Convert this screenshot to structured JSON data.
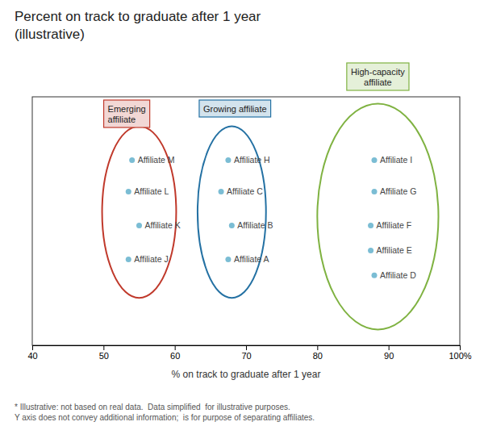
{
  "chart_data": {
    "type": "scatter",
    "title": "Percent on track to graduate after 1 year\n(illustrative)",
    "xlabel": "% on track to graduate after 1 year",
    "footnote": "* Illustrative: not based on real data.  Data simplified  for illustrative purposes.\nY axis does not convey additional information;  is for purpose of separating affiliates.",
    "xlim": [
      40,
      100
    ],
    "xticks": [
      40,
      50,
      60,
      70,
      80,
      90,
      {
        "value": 100,
        "label": "100%"
      }
    ],
    "ylim": [
      0,
      11
    ],
    "tick_labels": "x",
    "grid": false,
    "color": "#7BBDD4",
    "labels": [
      "Affiliate M",
      "Affiliate L",
      "Affiliate K",
      "Affiliate J",
      "Affiliate H",
      "Affiliate C",
      "Affiliate B",
      "Affiliate A",
      "Affiliate I",
      "Affiliate G",
      "Affiliate F",
      "Affiliate E",
      "Affiliate D"
    ],
    "x": [
      54.0,
      53.5,
      55.0,
      53.5,
      67.5,
      66.5,
      68.0,
      67.5,
      88.0,
      88.0,
      87.5,
      87.5,
      88.0
    ],
    "values": [
      8.2,
      6.8,
      5.3,
      3.8,
      8.2,
      6.8,
      5.3,
      3.8,
      8.2,
      6.8,
      5.3,
      4.2,
      3.1
    ],
    "ellipses": [
      {
        "name": "Emerging\naffiliate",
        "color": "#C0392B",
        "cx": 55.0,
        "cy": 5.9,
        "rx": 5.2,
        "ry": 3.8
      },
      {
        "name": "Growing affiliate",
        "color": "#2471A3",
        "cx": 68.0,
        "cy": 5.9,
        "rx": 4.8,
        "ry": 3.8
      },
      {
        "name": "High-capacity\naffiliate",
        "color": "#7FB241",
        "cx": 88.5,
        "cy": 5.7,
        "rx": 8.5,
        "ry": 5.0
      }
    ]
  }
}
